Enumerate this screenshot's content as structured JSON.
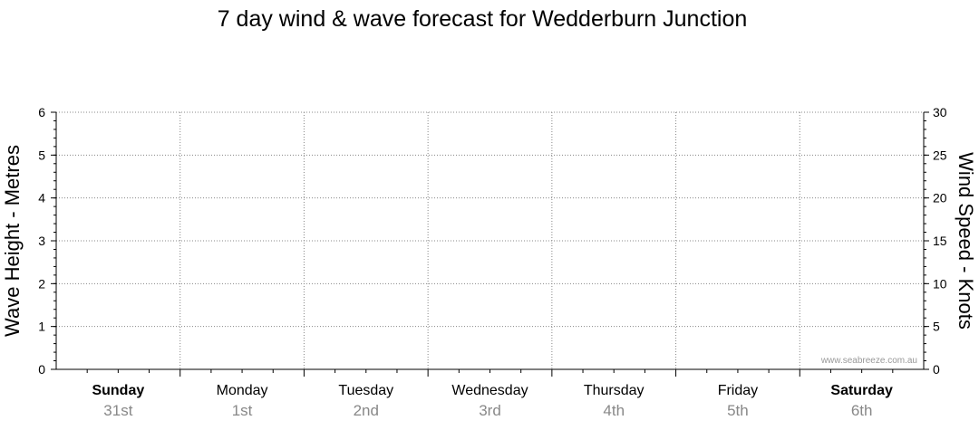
{
  "chart_data": {
    "type": "line",
    "title": "7 day wind & wave forecast for Wedderburn Junction",
    "y_left": {
      "label": "Wave Height - Metres",
      "ylim": [
        0,
        6
      ],
      "ticks": [
        "0",
        "1",
        "2",
        "3",
        "4",
        "5",
        "6"
      ]
    },
    "y_right": {
      "label": "Wind Speed - Knots",
      "ylim": [
        0,
        30
      ],
      "ticks": [
        "0",
        "5",
        "10",
        "15",
        "20",
        "25",
        "30"
      ]
    },
    "days": [
      {
        "name": "Sunday",
        "date": "31st",
        "bold": true
      },
      {
        "name": "Monday",
        "date": "1st",
        "bold": false
      },
      {
        "name": "Tuesday",
        "date": "2nd",
        "bold": false
      },
      {
        "name": "Wednesday",
        "date": "3rd",
        "bold": false
      },
      {
        "name": "Thursday",
        "date": "4th",
        "bold": false
      },
      {
        "name": "Friday",
        "date": "5th",
        "bold": false
      },
      {
        "name": "Saturday",
        "date": "6th",
        "bold": true
      }
    ],
    "series": [],
    "grid": true,
    "watermark": "www.seabreeze.com.au",
    "colors": {
      "grid": "#888888",
      "axis": "#000000",
      "day_name": "#000000",
      "day_date": "#888888",
      "watermark": "#999999"
    }
  }
}
